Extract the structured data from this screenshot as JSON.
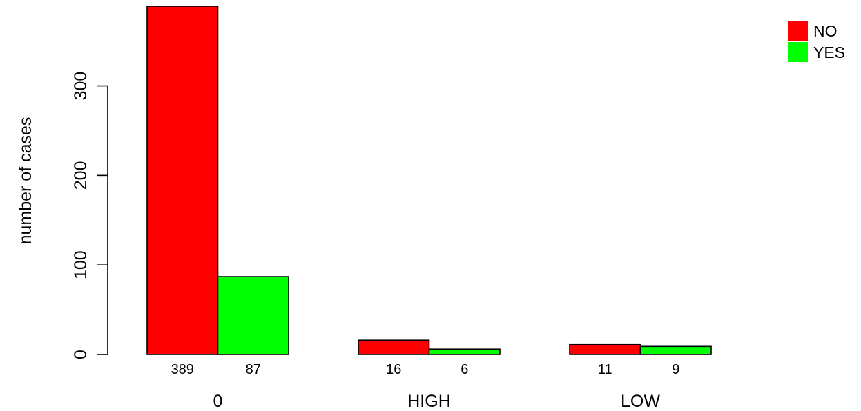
{
  "chart_data": {
    "type": "bar",
    "barmode": "grouped",
    "categories": [
      "0",
      "HIGH",
      "LOW"
    ],
    "series": [
      {
        "name": "NO",
        "color": "#ff0000",
        "values": [
          389,
          16,
          11
        ]
      },
      {
        "name": "YES",
        "color": "#00ff00",
        "values": [
          87,
          6,
          9
        ]
      }
    ],
    "value_labels": true,
    "title": "",
    "xlabel": "",
    "ylabel": "number of cases",
    "ylim": [
      0,
      389
    ],
    "yticks": [
      0,
      100,
      200,
      300
    ],
    "grid": false,
    "legend_position": "top-right"
  }
}
